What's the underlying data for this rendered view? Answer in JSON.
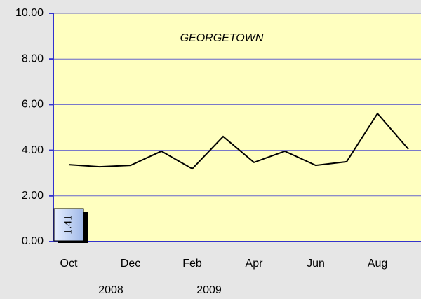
{
  "chart_data": {
    "type": "line",
    "title": "GEORGETOWN",
    "categories": [
      "Oct",
      null,
      "Dec",
      null,
      "Feb",
      null,
      "Apr",
      null,
      "Jun",
      null,
      "Aug",
      null
    ],
    "series": [
      {
        "name": "GEORGETOWN",
        "color": "#000000",
        "values": [
          3.37,
          3.28,
          3.34,
          3.96,
          3.19,
          4.6,
          3.47,
          3.96,
          3.34,
          3.5,
          5.61,
          4.05
        ]
      }
    ],
    "ylim": [
      0,
      10
    ],
    "yticks": [
      {
        "value": 0,
        "label": "0.00"
      },
      {
        "value": 2,
        "label": "2.00"
      },
      {
        "value": 4,
        "label": "4.00"
      },
      {
        "value": 6,
        "label": "6.00"
      },
      {
        "value": 8,
        "label": "8.00"
      },
      {
        "value": 10,
        "label": "10.00"
      }
    ],
    "grid": true,
    "annotations": [
      "2008",
      "2009"
    ],
    "callout": 1.41
  }
}
